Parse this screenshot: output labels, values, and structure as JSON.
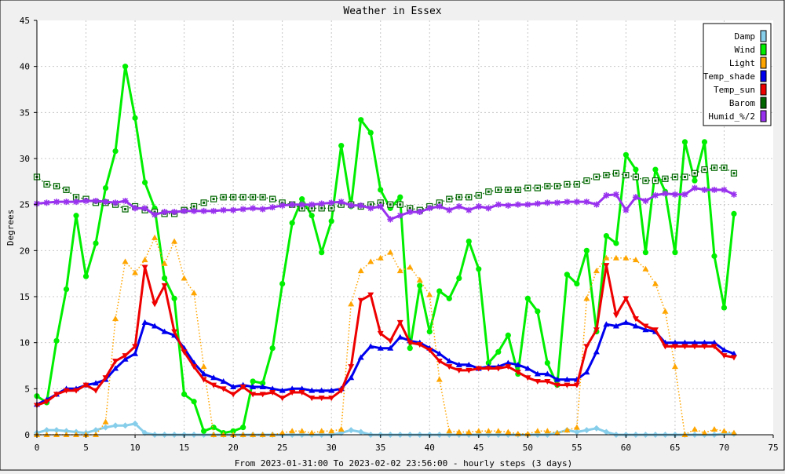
{
  "chart_data": {
    "type": "line",
    "title": "Weather in Essex",
    "ylabel": "Degrees",
    "xlabel": "From 2023-01-31:00 To 2023-02-02 23:56:00 - hourly steps (3 days)",
    "xlim": [
      0,
      75
    ],
    "ylim": [
      0,
      45
    ],
    "x_ticks": [
      0,
      5,
      10,
      15,
      20,
      25,
      30,
      35,
      40,
      45,
      50,
      55,
      60,
      65,
      70,
      75
    ],
    "y_ticks": [
      0,
      5,
      10,
      15,
      20,
      25,
      30,
      35,
      40,
      45
    ],
    "grid": true,
    "legend_position": "top-right",
    "x": [
      0,
      1,
      2,
      3,
      4,
      5,
      6,
      7,
      8,
      9,
      10,
      11,
      12,
      13,
      14,
      15,
      16,
      17,
      18,
      19,
      20,
      21,
      22,
      23,
      24,
      25,
      26,
      27,
      28,
      29,
      30,
      31,
      32,
      33,
      34,
      35,
      36,
      37,
      38,
      39,
      40,
      41,
      42,
      43,
      44,
      45,
      46,
      47,
      48,
      49,
      50,
      51,
      52,
      53,
      54,
      55,
      56,
      57,
      58,
      59,
      60,
      61,
      62,
      63,
      64,
      65,
      66,
      67,
      68,
      69,
      70,
      71
    ],
    "series": [
      {
        "name": "Damp",
        "color": "#87ceeb",
        "marker": "diamond",
        "style": "solid",
        "width": 3,
        "values": [
          0.2,
          0.5,
          0.5,
          0.4,
          0.3,
          0.2,
          0.5,
          0.8,
          1.0,
          1.0,
          1.2,
          0.2,
          0.0,
          0.0,
          0.0,
          0.0,
          0.0,
          0.0,
          0.0,
          0.0,
          0.0,
          0.0,
          0.0,
          0.0,
          0.0,
          0.0,
          0.0,
          0.0,
          0.0,
          0.0,
          0.0,
          0.2,
          0.5,
          0.3,
          0.0,
          0.0,
          0.0,
          0.0,
          0.0,
          0.0,
          0.0,
          0.0,
          0.0,
          0.0,
          0.0,
          0.0,
          0.0,
          0.0,
          0.0,
          0.0,
          0.0,
          0.0,
          0.0,
          0.2,
          0.5,
          0.3,
          0.5,
          0.7,
          0.3,
          0.0,
          0.0,
          0.0,
          0.0,
          0.0,
          0.0,
          0.0,
          0.0,
          0.0,
          0.0,
          0.0,
          0.1,
          0.1
        ]
      },
      {
        "name": "Wind",
        "color": "#00ee00",
        "marker": "circle",
        "style": "solid",
        "width": 3,
        "values": [
          4.2,
          3.5,
          10.2,
          15.8,
          23.8,
          17.2,
          20.8,
          26.8,
          30.8,
          40.0,
          34.4,
          27.4,
          24.6,
          17.0,
          14.8,
          4.4,
          3.6,
          0.4,
          0.8,
          0.2,
          0.4,
          0.8,
          5.8,
          5.6,
          9.4,
          16.4,
          23.0,
          25.6,
          23.8,
          19.8,
          23.2,
          31.4,
          24.8,
          34.2,
          32.8,
          26.6,
          24.6,
          25.8,
          9.4,
          16.2,
          11.2,
          15.6,
          14.8,
          17.0,
          21.0,
          18.0,
          7.8,
          9.0,
          10.8,
          6.6,
          14.8,
          13.4,
          7.8,
          5.4,
          17.4,
          16.4,
          20.0,
          11.2,
          21.6,
          20.8,
          30.4,
          28.8,
          19.8,
          28.8,
          26.4,
          19.8,
          31.8,
          27.6,
          31.8,
          19.4,
          13.8,
          24.0
        ]
      },
      {
        "name": "Light",
        "color": "#ffa500",
        "marker": "triangle",
        "style": "dotted",
        "width": 1.5,
        "values": [
          0.0,
          0.0,
          0.0,
          0.0,
          0.0,
          0.0,
          0.0,
          1.4,
          12.6,
          18.8,
          17.6,
          19.0,
          21.4,
          18.6,
          21.0,
          17.0,
          15.4,
          7.4,
          0.0,
          0.0,
          0.0,
          0.0,
          0.0,
          0.0,
          0.0,
          0.2,
          0.4,
          0.4,
          0.2,
          0.4,
          0.4,
          0.6,
          14.2,
          17.8,
          18.8,
          19.2,
          19.8,
          17.8,
          18.2,
          16.8,
          15.2,
          6.0,
          0.4,
          0.3,
          0.3,
          0.4,
          0.4,
          0.4,
          0.3,
          0.1,
          0.1,
          0.4,
          0.4,
          0.2,
          0.5,
          0.8,
          14.8,
          17.8,
          19.2,
          19.2,
          19.2,
          19.0,
          18.0,
          16.4,
          13.4,
          7.4,
          0.0,
          0.6,
          0.2,
          0.6,
          0.4,
          0.2
        ]
      },
      {
        "name": "Temp_shade",
        "color": "#0000ee",
        "marker": "triangle",
        "style": "solid",
        "width": 3,
        "values": [
          3.3,
          3.8,
          4.4,
          5.0,
          5.0,
          5.4,
          5.6,
          6.0,
          7.2,
          8.2,
          8.8,
          12.2,
          11.8,
          11.2,
          10.8,
          9.4,
          7.8,
          6.6,
          6.2,
          5.8,
          5.2,
          5.4,
          5.2,
          5.2,
          5.0,
          4.8,
          5.0,
          5.0,
          4.8,
          4.8,
          4.8,
          5.0,
          6.2,
          8.4,
          9.6,
          9.4,
          9.4,
          10.6,
          10.2,
          10.0,
          9.4,
          8.8,
          8.0,
          7.6,
          7.6,
          7.2,
          7.4,
          7.4,
          7.8,
          7.6,
          7.2,
          6.6,
          6.6,
          6.0,
          6.0,
          6.0,
          6.8,
          9.0,
          12.0,
          11.8,
          12.2,
          11.8,
          11.4,
          11.2,
          10.0,
          10.0,
          10.0,
          10.0,
          10.0,
          10.0,
          9.2,
          8.8
        ]
      },
      {
        "name": "Temp_sun",
        "color": "#ee0000",
        "marker": "triangle-down",
        "style": "solid",
        "width": 3,
        "values": [
          3.2,
          3.6,
          4.4,
          4.8,
          4.8,
          5.4,
          4.8,
          6.2,
          8.0,
          8.6,
          9.6,
          18.2,
          14.2,
          16.2,
          11.2,
          9.0,
          7.4,
          6.0,
          5.4,
          5.0,
          4.4,
          5.2,
          4.4,
          4.4,
          4.6,
          4.0,
          4.6,
          4.6,
          4.0,
          4.0,
          4.0,
          4.8,
          7.4,
          14.6,
          15.2,
          11.0,
          10.2,
          12.2,
          10.0,
          9.8,
          9.2,
          8.0,
          7.4,
          7.0,
          7.0,
          7.2,
          7.2,
          7.2,
          7.4,
          6.8,
          6.2,
          5.8,
          5.8,
          5.4,
          5.4,
          5.4,
          9.6,
          11.4,
          18.4,
          13.0,
          14.8,
          12.6,
          11.8,
          11.4,
          9.6,
          9.6,
          9.6,
          9.6,
          9.6,
          9.6,
          8.6,
          8.4
        ]
      },
      {
        "name": "Barom",
        "color": "#006600",
        "marker": "square",
        "style": "dotted",
        "width": 1.5,
        "values": [
          28.0,
          27.2,
          27.0,
          26.6,
          25.8,
          25.6,
          25.2,
          25.2,
          25.0,
          24.5,
          24.8,
          24.4,
          24.2,
          24.0,
          24.0,
          24.4,
          24.8,
          25.2,
          25.6,
          25.8,
          25.8,
          25.8,
          25.8,
          25.8,
          25.6,
          25.2,
          25.0,
          24.6,
          24.6,
          24.6,
          24.6,
          25.0,
          25.0,
          24.8,
          25.0,
          25.2,
          25.0,
          25.0,
          24.6,
          24.4,
          24.8,
          25.2,
          25.6,
          25.8,
          25.8,
          26.0,
          26.4,
          26.6,
          26.6,
          26.6,
          26.8,
          26.8,
          27.0,
          27.0,
          27.2,
          27.2,
          27.6,
          28.0,
          28.2,
          28.4,
          28.2,
          28.0,
          27.6,
          27.6,
          27.8,
          28.0,
          28.0,
          28.4,
          28.8,
          29.0,
          29.0,
          28.4
        ]
      },
      {
        "name": "Humid_%/2",
        "color": "#9932ee",
        "marker": "star",
        "style": "solid",
        "width": 3,
        "values": [
          25.1,
          25.2,
          25.3,
          25.3,
          25.3,
          25.4,
          25.4,
          25.3,
          25.2,
          25.4,
          24.6,
          24.6,
          23.9,
          24.2,
          24.2,
          24.3,
          24.3,
          24.3,
          24.3,
          24.4,
          24.4,
          24.5,
          24.6,
          24.5,
          24.7,
          24.9,
          25.0,
          25.0,
          25.0,
          25.1,
          25.2,
          25.3,
          24.9,
          24.9,
          24.6,
          24.8,
          23.4,
          23.8,
          24.2,
          24.2,
          24.6,
          24.8,
          24.4,
          24.8,
          24.4,
          24.8,
          24.6,
          25.0,
          24.9,
          25.0,
          25.0,
          25.1,
          25.2,
          25.2,
          25.3,
          25.3,
          25.3,
          25.0,
          26.0,
          26.1,
          24.4,
          25.8,
          25.4,
          26.0,
          26.2,
          26.1,
          26.1,
          26.8,
          26.6,
          26.6,
          26.6,
          26.1
        ]
      }
    ]
  }
}
